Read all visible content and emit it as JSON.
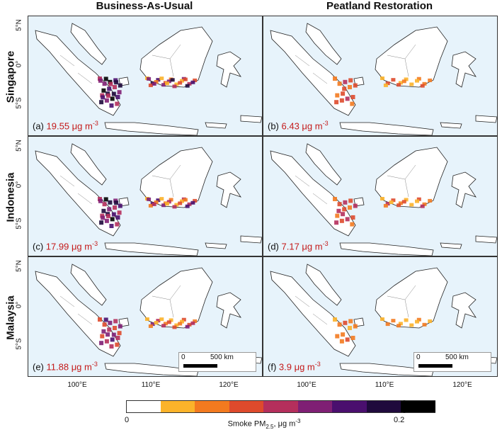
{
  "columns": [
    "Business-As-Usual",
    "Peatland Restoration"
  ],
  "rows": [
    "Singapore",
    "Indonesia",
    "Malaysia"
  ],
  "panels": [
    {
      "letter": "(a)",
      "value": "19.55 μg m",
      "exp": "-3",
      "intensity": 1.0
    },
    {
      "letter": "(b)",
      "value": "6.43 μg m",
      "exp": "-3",
      "intensity": 0.45
    },
    {
      "letter": "(c)",
      "value": "17.99 μg m",
      "exp": "-3",
      "intensity": 0.95
    },
    {
      "letter": "(d)",
      "value": "7.17 μg m",
      "exp": "-3",
      "intensity": 0.5
    },
    {
      "letter": "(e)",
      "value": "11.88 μg m",
      "exp": "-3",
      "intensity": 0.7
    },
    {
      "letter": "(f)",
      "value": "3.9 μg m",
      "exp": "-3",
      "intensity": 0.3
    }
  ],
  "lat_ticks": [
    "5°N",
    "0°",
    "5°S"
  ],
  "lon_ticks": [
    "100°E",
    "110°E",
    "120°E"
  ],
  "scalebar": {
    "zero": "0",
    "label": "500 km"
  },
  "colorbar": {
    "min": "0",
    "max": "0.2",
    "label": "Smoke PM",
    "sub": "2.5",
    "unit": ", μg m",
    "unit_exp": "-3",
    "colors": [
      "#ffffff",
      "#fbb32a",
      "#f37a1f",
      "#de4a2c",
      "#b52f5c",
      "#7f1f74",
      "#4a0f6e",
      "#1f0a3c",
      "#000000"
    ]
  },
  "legend_colors": {
    "sea": "#e7f3fb",
    "land": "#ffffff",
    "value_text": "#c41a1a"
  }
}
